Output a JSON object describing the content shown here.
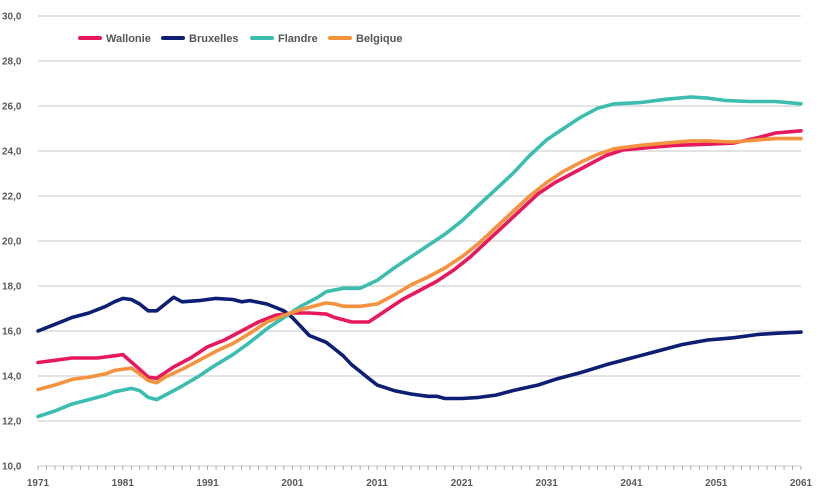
{
  "chart_data": {
    "type": "line",
    "title": "",
    "xlabel": "",
    "ylabel": "",
    "xlim": [
      1971,
      2061
    ],
    "ylim": [
      10,
      30
    ],
    "x_ticks": [
      1971,
      1981,
      1991,
      2001,
      2011,
      2021,
      2031,
      2041,
      2051,
      2061
    ],
    "y_ticks": [
      10,
      12,
      14,
      16,
      18,
      20,
      22,
      24,
      26,
      28,
      30
    ],
    "y_tick_labels": [
      "10,0",
      "12,0",
      "14,0",
      "16,0",
      "18,0",
      "20,0",
      "22,0",
      "24,0",
      "26,0",
      "28,0",
      "30,0"
    ],
    "grid": "horizontal",
    "legend_position": "top-left",
    "series": [
      {
        "name": "Wallonie",
        "color": "#e8185f",
        "points": [
          [
            1971,
            14.6
          ],
          [
            1973,
            14.7
          ],
          [
            1975,
            14.8
          ],
          [
            1978,
            14.8
          ],
          [
            1980,
            14.9
          ],
          [
            1981,
            14.95
          ],
          [
            1983,
            14.3
          ],
          [
            1984,
            13.95
          ],
          [
            1985,
            13.9
          ],
          [
            1987,
            14.4
          ],
          [
            1989,
            14.8
          ],
          [
            1991,
            15.3
          ],
          [
            1993,
            15.6
          ],
          [
            1995,
            16.0
          ],
          [
            1997,
            16.4
          ],
          [
            1999,
            16.7
          ],
          [
            2001,
            16.8
          ],
          [
            2003,
            16.8
          ],
          [
            2005,
            16.75
          ],
          [
            2006,
            16.6
          ],
          [
            2007,
            16.5
          ],
          [
            2008,
            16.4
          ],
          [
            2010,
            16.4
          ],
          [
            2012,
            16.9
          ],
          [
            2014,
            17.4
          ],
          [
            2016,
            17.8
          ],
          [
            2018,
            18.2
          ],
          [
            2020,
            18.7
          ],
          [
            2022,
            19.3
          ],
          [
            2024,
            20.0
          ],
          [
            2026,
            20.7
          ],
          [
            2028,
            21.4
          ],
          [
            2030,
            22.1
          ],
          [
            2032,
            22.6
          ],
          [
            2034,
            23.0
          ],
          [
            2036,
            23.4
          ],
          [
            2038,
            23.8
          ],
          [
            2040,
            24.05
          ],
          [
            2043,
            24.15
          ],
          [
            2046,
            24.25
          ],
          [
            2050,
            24.3
          ],
          [
            2053,
            24.35
          ],
          [
            2056,
            24.6
          ],
          [
            2058,
            24.8
          ],
          [
            2061,
            24.9
          ]
        ]
      },
      {
        "name": "Bruxelles",
        "color": "#0d1f73",
        "points": [
          [
            1971,
            16.0
          ],
          [
            1973,
            16.3
          ],
          [
            1975,
            16.6
          ],
          [
            1977,
            16.8
          ],
          [
            1979,
            17.1
          ],
          [
            1980,
            17.3
          ],
          [
            1981,
            17.45
          ],
          [
            1982,
            17.4
          ],
          [
            1983,
            17.2
          ],
          [
            1984,
            16.9
          ],
          [
            1985,
            16.9
          ],
          [
            1986,
            17.2
          ],
          [
            1987,
            17.5
          ],
          [
            1988,
            17.3
          ],
          [
            1990,
            17.35
          ],
          [
            1992,
            17.45
          ],
          [
            1994,
            17.4
          ],
          [
            1995,
            17.3
          ],
          [
            1996,
            17.35
          ],
          [
            1998,
            17.2
          ],
          [
            2000,
            16.9
          ],
          [
            2001,
            16.6
          ],
          [
            2002,
            16.2
          ],
          [
            2003,
            15.8
          ],
          [
            2005,
            15.5
          ],
          [
            2006,
            15.2
          ],
          [
            2007,
            14.9
          ],
          [
            2008,
            14.5
          ],
          [
            2009,
            14.2
          ],
          [
            2010,
            13.9
          ],
          [
            2011,
            13.6
          ],
          [
            2013,
            13.35
          ],
          [
            2015,
            13.2
          ],
          [
            2017,
            13.1
          ],
          [
            2018,
            13.1
          ],
          [
            2019,
            13.0
          ],
          [
            2021,
            13.0
          ],
          [
            2023,
            13.05
          ],
          [
            2025,
            13.15
          ],
          [
            2027,
            13.35
          ],
          [
            2030,
            13.6
          ],
          [
            2032,
            13.85
          ],
          [
            2035,
            14.15
          ],
          [
            2038,
            14.5
          ],
          [
            2041,
            14.8
          ],
          [
            2044,
            15.1
          ],
          [
            2047,
            15.4
          ],
          [
            2050,
            15.6
          ],
          [
            2053,
            15.7
          ],
          [
            2056,
            15.85
          ],
          [
            2058,
            15.9
          ],
          [
            2061,
            15.95
          ]
        ]
      },
      {
        "name": "Flandre",
        "color": "#3bbdb0",
        "points": [
          [
            1971,
            12.2
          ],
          [
            1973,
            12.45
          ],
          [
            1975,
            12.75
          ],
          [
            1977,
            12.95
          ],
          [
            1979,
            13.15
          ],
          [
            1980,
            13.3
          ],
          [
            1982,
            13.45
          ],
          [
            1983,
            13.35
          ],
          [
            1984,
            13.05
          ],
          [
            1985,
            12.95
          ],
          [
            1986,
            13.15
          ],
          [
            1988,
            13.55
          ],
          [
            1990,
            14.0
          ],
          [
            1992,
            14.5
          ],
          [
            1994,
            14.95
          ],
          [
            1996,
            15.5
          ],
          [
            1998,
            16.1
          ],
          [
            2000,
            16.6
          ],
          [
            2002,
            17.1
          ],
          [
            2004,
            17.5
          ],
          [
            2005,
            17.75
          ],
          [
            2007,
            17.9
          ],
          [
            2009,
            17.9
          ],
          [
            2011,
            18.25
          ],
          [
            2013,
            18.8
          ],
          [
            2015,
            19.3
          ],
          [
            2017,
            19.8
          ],
          [
            2019,
            20.3
          ],
          [
            2021,
            20.9
          ],
          [
            2023,
            21.6
          ],
          [
            2025,
            22.3
          ],
          [
            2027,
            23.0
          ],
          [
            2029,
            23.8
          ],
          [
            2031,
            24.5
          ],
          [
            2033,
            25.0
          ],
          [
            2035,
            25.5
          ],
          [
            2037,
            25.9
          ],
          [
            2039,
            26.1
          ],
          [
            2042,
            26.15
          ],
          [
            2045,
            26.3
          ],
          [
            2048,
            26.4
          ],
          [
            2050,
            26.35
          ],
          [
            2052,
            26.25
          ],
          [
            2055,
            26.2
          ],
          [
            2058,
            26.2
          ],
          [
            2061,
            26.1
          ]
        ]
      },
      {
        "name": "Belgique",
        "color": "#f5923e",
        "points": [
          [
            1971,
            13.4
          ],
          [
            1973,
            13.6
          ],
          [
            1975,
            13.85
          ],
          [
            1977,
            13.95
          ],
          [
            1979,
            14.1
          ],
          [
            1980,
            14.25
          ],
          [
            1982,
            14.35
          ],
          [
            1983,
            14.1
          ],
          [
            1984,
            13.8
          ],
          [
            1985,
            13.7
          ],
          [
            1986,
            13.95
          ],
          [
            1988,
            14.3
          ],
          [
            1990,
            14.7
          ],
          [
            1992,
            15.1
          ],
          [
            1994,
            15.45
          ],
          [
            1996,
            15.9
          ],
          [
            1998,
            16.4
          ],
          [
            2000,
            16.7
          ],
          [
            2002,
            16.95
          ],
          [
            2004,
            17.15
          ],
          [
            2005,
            17.25
          ],
          [
            2006,
            17.2
          ],
          [
            2007,
            17.1
          ],
          [
            2009,
            17.1
          ],
          [
            2011,
            17.2
          ],
          [
            2013,
            17.6
          ],
          [
            2015,
            18.05
          ],
          [
            2017,
            18.4
          ],
          [
            2019,
            18.8
          ],
          [
            2021,
            19.3
          ],
          [
            2023,
            19.9
          ],
          [
            2025,
            20.6
          ],
          [
            2027,
            21.3
          ],
          [
            2029,
            22.0
          ],
          [
            2031,
            22.6
          ],
          [
            2033,
            23.1
          ],
          [
            2035,
            23.5
          ],
          [
            2037,
            23.85
          ],
          [
            2039,
            24.1
          ],
          [
            2042,
            24.25
          ],
          [
            2045,
            24.35
          ],
          [
            2048,
            24.45
          ],
          [
            2050,
            24.45
          ],
          [
            2053,
            24.4
          ],
          [
            2056,
            24.5
          ],
          [
            2058,
            24.55
          ],
          [
            2061,
            24.55
          ]
        ]
      }
    ]
  }
}
